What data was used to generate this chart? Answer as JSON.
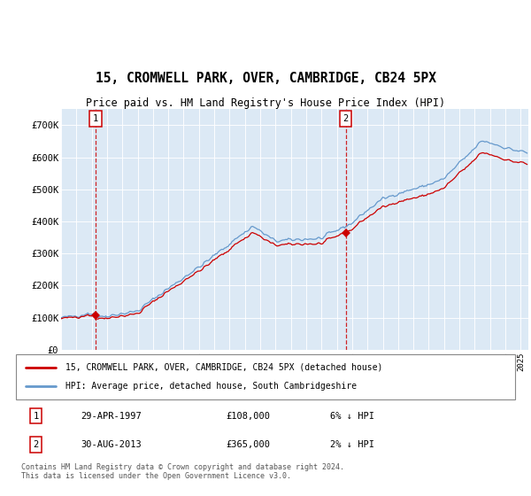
{
  "title": "15, CROMWELL PARK, OVER, CAMBRIDGE, CB24 5PX",
  "subtitle": "Price paid vs. HM Land Registry's House Price Index (HPI)",
  "sale1_date": "29-APR-1997",
  "sale1_price": 108000,
  "sale1_note": "6% ↓ HPI",
  "sale2_date": "30-AUG-2013",
  "sale2_price": 365000,
  "sale2_note": "2% ↓ HPI",
  "legend_red": "15, CROMWELL PARK, OVER, CAMBRIDGE, CB24 5PX (detached house)",
  "legend_blue": "HPI: Average price, detached house, South Cambridgeshire",
  "footer": "Contains HM Land Registry data © Crown copyright and database right 2024.\nThis data is licensed under the Open Government Licence v3.0.",
  "bg_color": "#dce9f5",
  "red_color": "#cc0000",
  "blue_color": "#6699cc",
  "ylim": [
    0,
    750000
  ],
  "yticks": [
    0,
    100000,
    200000,
    300000,
    400000,
    500000,
    600000,
    700000
  ],
  "ytick_labels": [
    "£0",
    "£100K",
    "£200K",
    "£300K",
    "£400K",
    "£500K",
    "£600K",
    "£700K"
  ],
  "start_year": 1995.0,
  "end_year": 2025.5
}
